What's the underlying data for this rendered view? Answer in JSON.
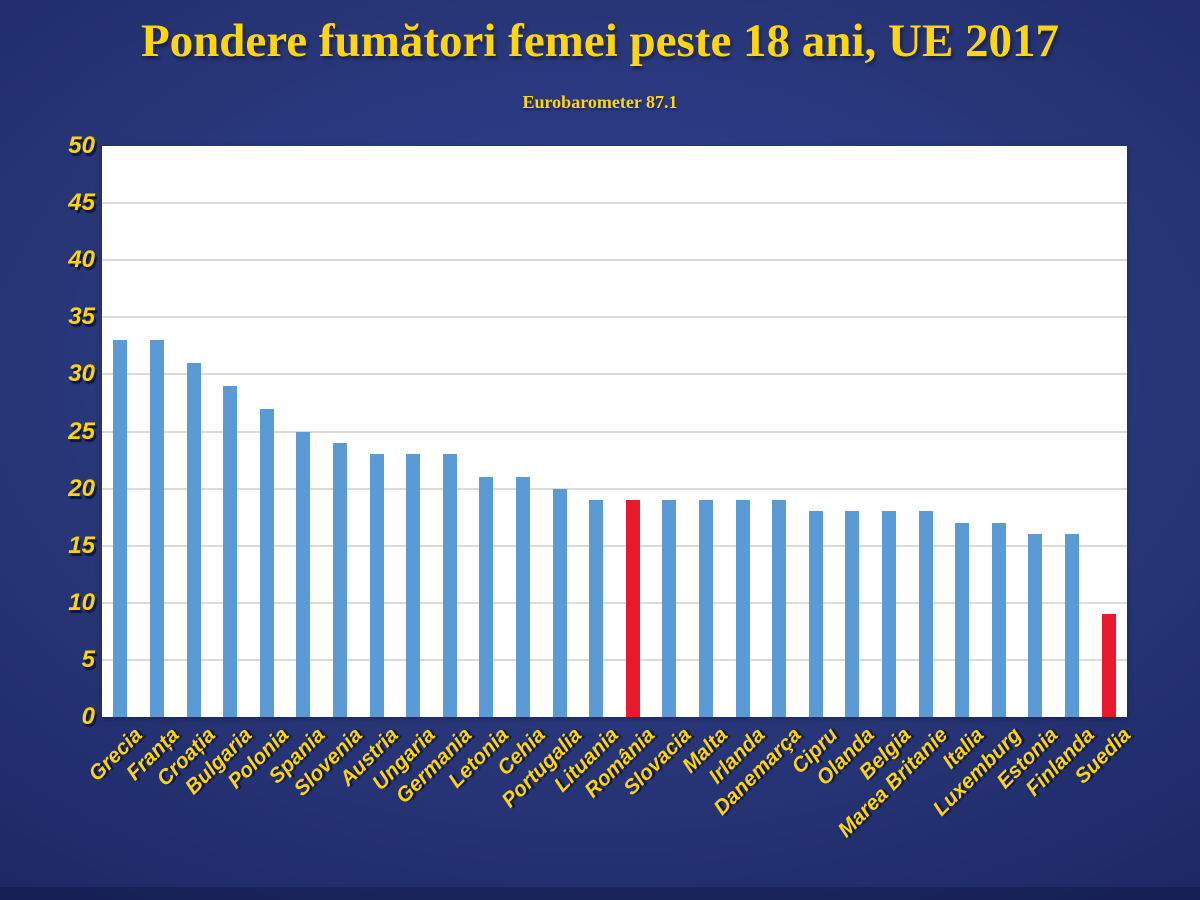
{
  "page": {
    "title": "Pondere fumători femei peste 18 ani, UE 2017",
    "subtitle": "Eurobarometer 87.1"
  },
  "chart_data": {
    "type": "bar",
    "title": "Pondere fumători femei peste 18 ani, UE 2017",
    "subtitle": "Eurobarometer 87.1",
    "categories": [
      "Grecia",
      "Franța",
      "Croația",
      "Bulgaria",
      "Polonia",
      "Spania",
      "Slovenia",
      "Austria",
      "Ungaria",
      "Germania",
      "Letonia",
      "Cehia",
      "Portugalia",
      "Lituania",
      "România",
      "Slovacia",
      "Malta",
      "Irlanda",
      "Danemarça",
      "Cipru",
      "Olanda",
      "Belgia",
      "Marea Britanie",
      "Italia",
      "Luxemburg",
      "Estonia",
      "Finlanda",
      "Suedia"
    ],
    "values": [
      33,
      33,
      31,
      29,
      27,
      25,
      24,
      23,
      23,
      23,
      21,
      21,
      20,
      19,
      19,
      19,
      19,
      19,
      19,
      18,
      18,
      18,
      18,
      17,
      17,
      16,
      16,
      9
    ],
    "highlighted_categories": [
      "România",
      "Suedia"
    ],
    "xlabel": "",
    "ylabel": "",
    "ylim": [
      0,
      50
    ],
    "yticks": [
      0,
      5,
      10,
      15,
      20,
      25,
      30,
      35,
      40,
      45,
      50
    ],
    "grid": true,
    "legend": "none",
    "colors": {
      "bar": "#5B9BD5",
      "highlight": "#E8192C",
      "grid": "#DBDBDB",
      "plot_background": "#FFFFFF",
      "title_text": "#FFD60D",
      "axis_text": "#FFD400",
      "background_center": "#30419A",
      "background_edge": "#1C2663"
    }
  }
}
